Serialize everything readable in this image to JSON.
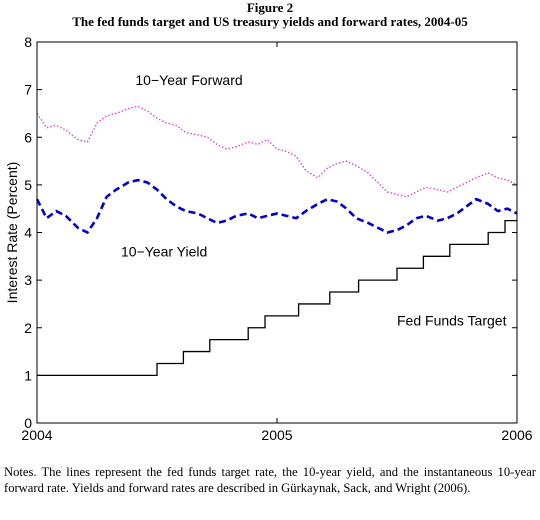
{
  "figure": {
    "label": "Figure 2",
    "title": "The fed funds target and US treasury yields and forward rates, 2004-05"
  },
  "notes": "Notes. The lines represent the fed funds target rate, the 10-year yield, and the instantaneous 10-year forward rate. Yields and forward rates are described in Gürkaynak, Sack, and Wright (2006).",
  "chart_data": {
    "type": "line",
    "xlim": [
      2004,
      2006
    ],
    "ylim": [
      0,
      8
    ],
    "ylabel": "Interest Rate (Percent)",
    "xlabel": "",
    "x_ticks": [
      2004,
      2005,
      2006
    ],
    "x_tick_labels": [
      "2004",
      "2005",
      "2006"
    ],
    "y_ticks": [
      0,
      1,
      2,
      3,
      4,
      5,
      6,
      7,
      8
    ],
    "y_tick_labels": [
      "0",
      "1",
      "2",
      "3",
      "4",
      "5",
      "6",
      "7",
      "8"
    ],
    "grid": false,
    "colors": {
      "forward": "#e040e0",
      "yield": "#0000cc",
      "target": "#000000"
    },
    "series": [
      {
        "name": "10-Year Forward",
        "style": "dotted",
        "x": [
          2004.0,
          2004.04,
          2004.08,
          2004.12,
          2004.17,
          2004.21,
          2004.25,
          2004.29,
          2004.33,
          2004.38,
          2004.42,
          2004.46,
          2004.5,
          2004.54,
          2004.58,
          2004.62,
          2004.67,
          2004.71,
          2004.75,
          2004.79,
          2004.83,
          2004.88,
          2004.92,
          2004.96,
          2005.0,
          2005.04,
          2005.08,
          2005.12,
          2005.17,
          2005.21,
          2005.25,
          2005.29,
          2005.33,
          2005.38,
          2005.42,
          2005.46,
          2005.5,
          2005.54,
          2005.58,
          2005.62,
          2005.67,
          2005.71,
          2005.75,
          2005.79,
          2005.83,
          2005.88,
          2005.92,
          2005.96,
          2006.0
        ],
        "values": [
          6.5,
          6.2,
          6.25,
          6.15,
          5.95,
          5.9,
          6.3,
          6.45,
          6.5,
          6.6,
          6.65,
          6.55,
          6.4,
          6.3,
          6.25,
          6.1,
          6.05,
          6.0,
          5.85,
          5.75,
          5.8,
          5.9,
          5.85,
          5.95,
          5.75,
          5.7,
          5.6,
          5.3,
          5.15,
          5.35,
          5.45,
          5.5,
          5.4,
          5.25,
          5.05,
          4.85,
          4.8,
          4.75,
          4.85,
          4.95,
          4.9,
          4.85,
          4.95,
          5.05,
          5.15,
          5.25,
          5.15,
          5.1,
          5.0
        ]
      },
      {
        "name": "10-Year Yield",
        "style": "dashed",
        "x": [
          2004.0,
          2004.04,
          2004.08,
          2004.12,
          2004.17,
          2004.21,
          2004.25,
          2004.29,
          2004.33,
          2004.38,
          2004.42,
          2004.46,
          2004.5,
          2004.54,
          2004.58,
          2004.62,
          2004.67,
          2004.71,
          2004.75,
          2004.79,
          2004.83,
          2004.88,
          2004.92,
          2004.96,
          2005.0,
          2005.04,
          2005.08,
          2005.12,
          2005.17,
          2005.21,
          2005.25,
          2005.29,
          2005.33,
          2005.38,
          2005.42,
          2005.46,
          2005.5,
          2005.54,
          2005.58,
          2005.62,
          2005.67,
          2005.71,
          2005.75,
          2005.79,
          2005.83,
          2005.88,
          2005.92,
          2005.96,
          2006.0
        ],
        "values": [
          4.7,
          4.3,
          4.45,
          4.35,
          4.1,
          4.0,
          4.3,
          4.75,
          4.9,
          5.05,
          5.1,
          5.05,
          4.9,
          4.7,
          4.55,
          4.45,
          4.4,
          4.3,
          4.2,
          4.25,
          4.35,
          4.4,
          4.3,
          4.35,
          4.4,
          4.35,
          4.3,
          4.45,
          4.6,
          4.7,
          4.65,
          4.5,
          4.3,
          4.2,
          4.1,
          4.0,
          4.05,
          4.15,
          4.3,
          4.35,
          4.25,
          4.3,
          4.4,
          4.55,
          4.7,
          4.6,
          4.45,
          4.5,
          4.4
        ]
      },
      {
        "name": "Fed Funds Target",
        "style": "step",
        "x": [
          2004.0,
          2004.5,
          2004.61,
          2004.72,
          2004.88,
          2004.95,
          2005.09,
          2005.22,
          2005.34,
          2005.5,
          2005.61,
          2005.72,
          2005.88,
          2005.95,
          2006.0
        ],
        "values": [
          1.0,
          1.25,
          1.5,
          1.75,
          2.0,
          2.25,
          2.5,
          2.75,
          3.0,
          3.25,
          3.5,
          3.75,
          4.0,
          4.25,
          4.25
        ]
      }
    ],
    "annotations": [
      {
        "text": "10−Year Forward",
        "x": 2004.41,
        "y": 7.1
      },
      {
        "text": "10−Year Yield",
        "x": 2004.35,
        "y": 3.5
      },
      {
        "text": "Fed Funds Target",
        "x": 2005.5,
        "y": 2.05
      }
    ]
  }
}
